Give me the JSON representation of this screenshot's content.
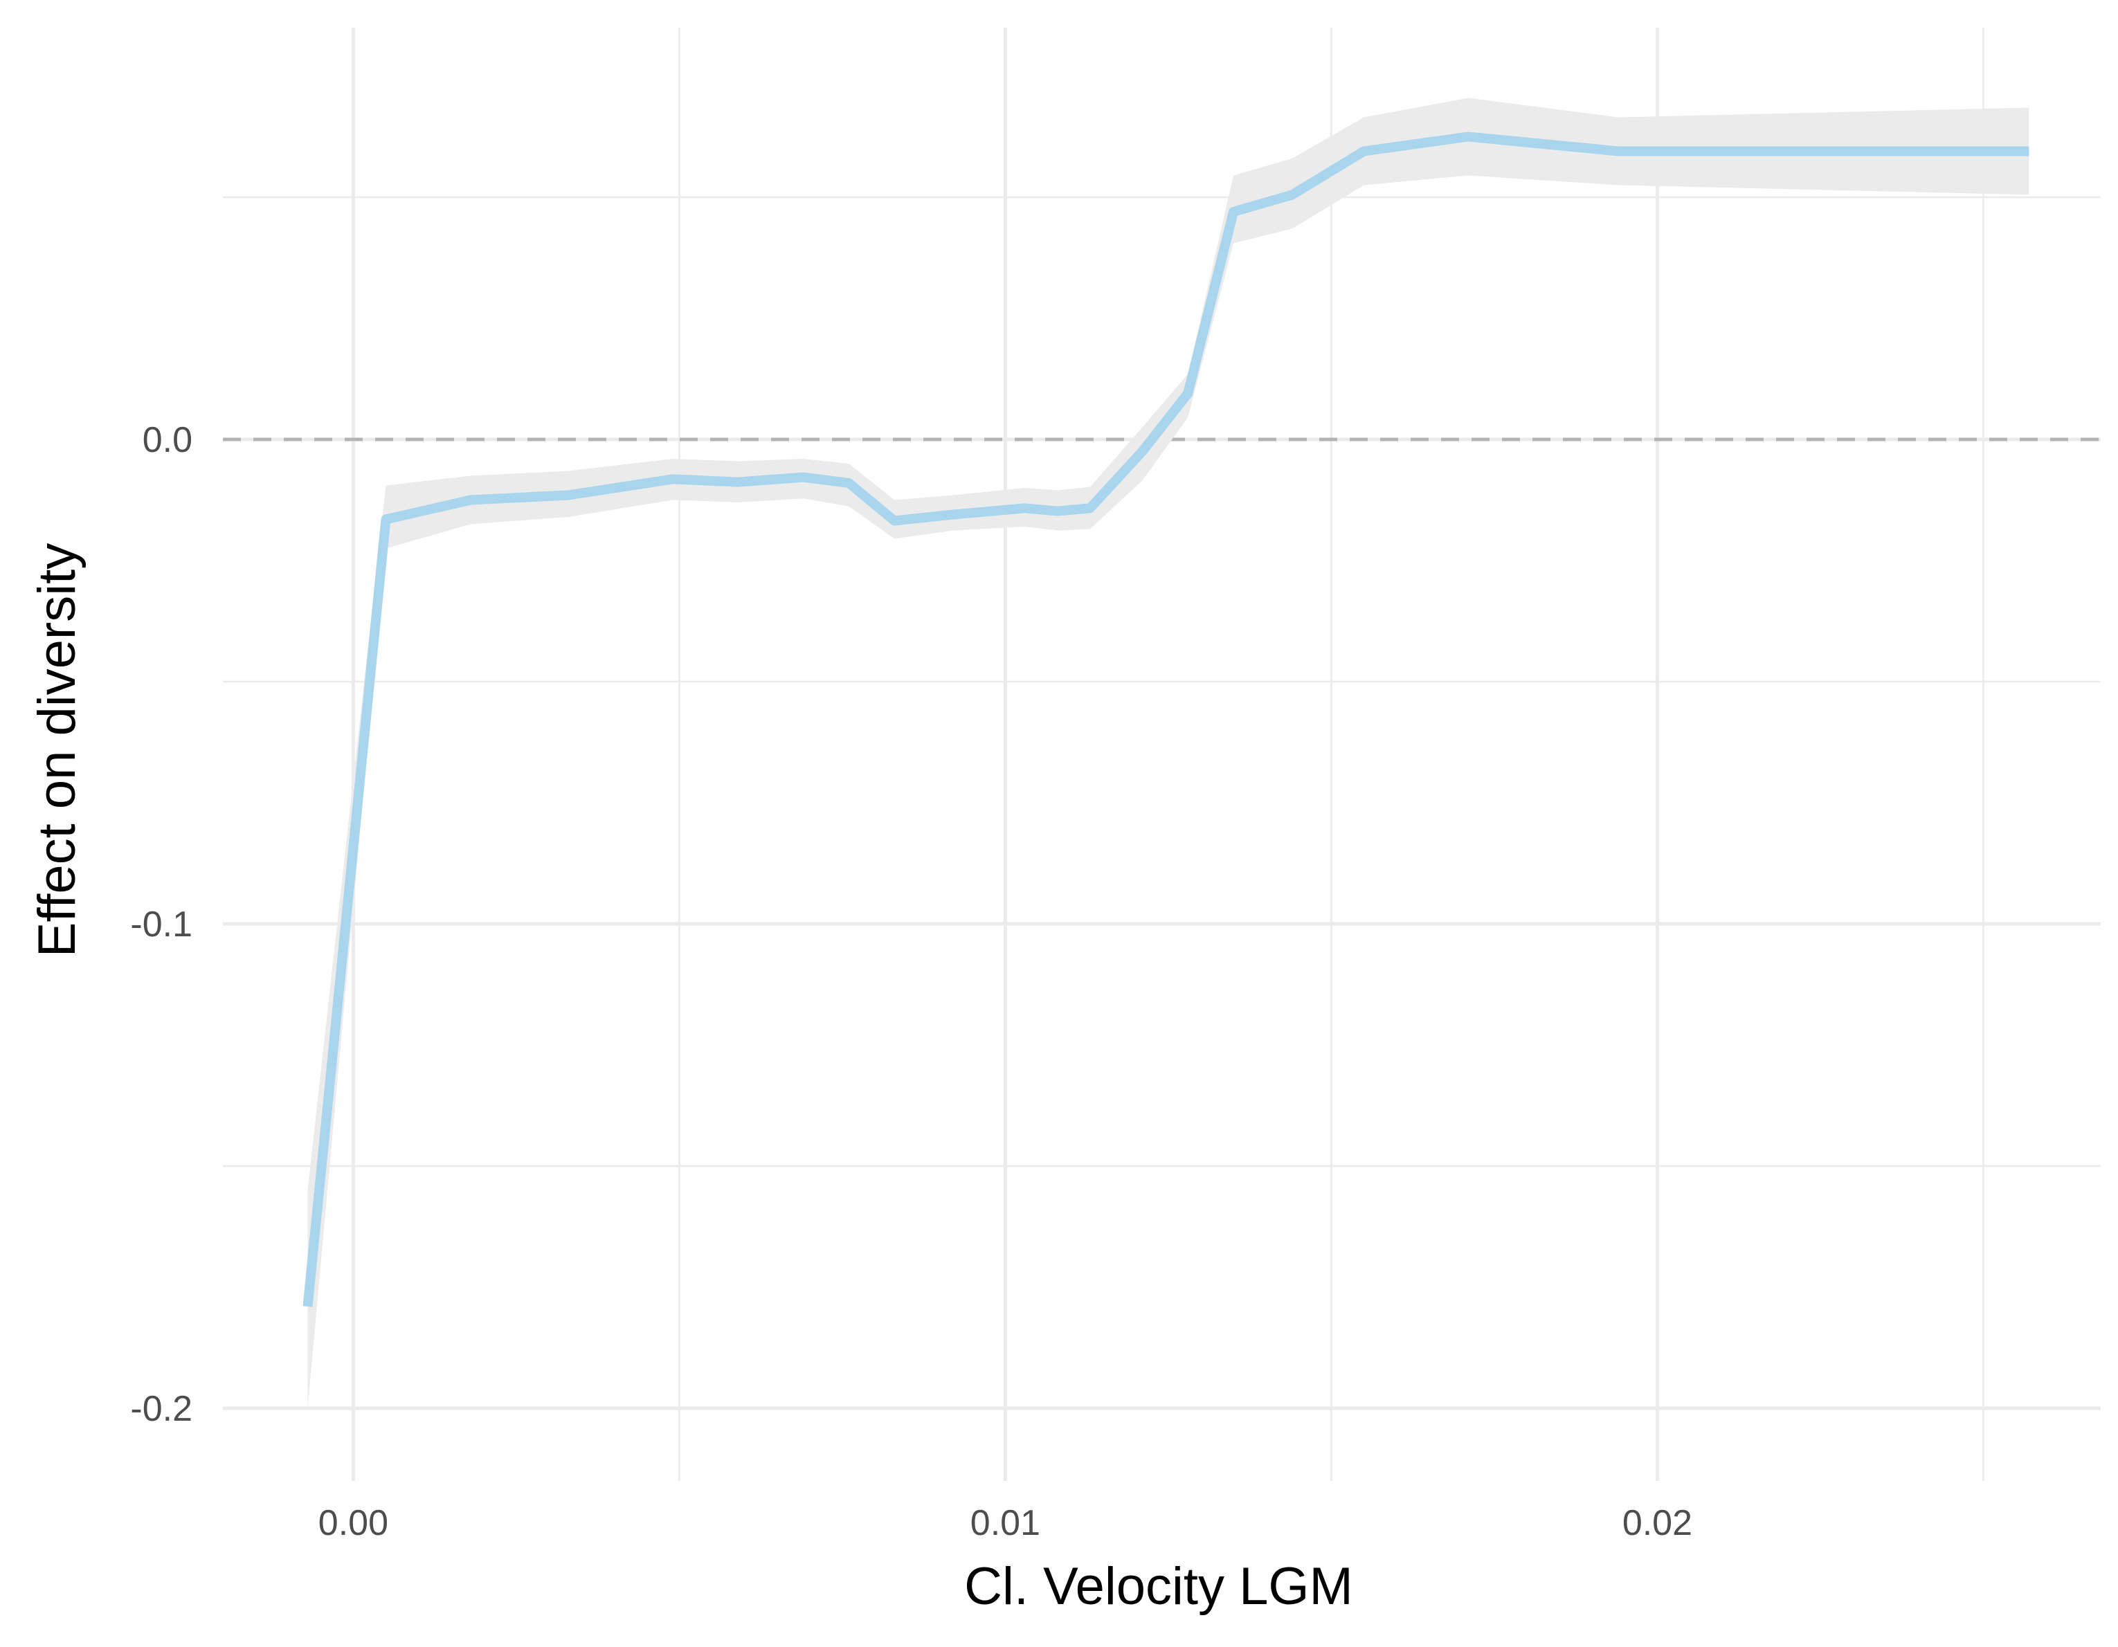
{
  "chart_data": {
    "type": "line",
    "xlabel": "Cl. Velocity LGM",
    "ylabel": "Effect on diversity",
    "xlim": [
      -0.002,
      0.0268
    ],
    "ylim": [
      -0.215,
      0.085
    ],
    "x_ticks": [
      0.0,
      0.01,
      0.02
    ],
    "x_tick_labels": [
      "0.00",
      "0.01",
      "0.02"
    ],
    "y_ticks": [
      -0.2,
      -0.1,
      0.0
    ],
    "y_tick_labels": [
      "-0.2",
      "-0.1",
      "0.0"
    ],
    "reference_line": {
      "y": 0.0,
      "style": "dashed",
      "color": "#b3b3b3"
    },
    "grid": true,
    "series": [
      {
        "x": [
          -0.0007,
          0.0005,
          0.0018,
          0.0033,
          0.0049,
          0.0059,
          0.0069,
          0.0076,
          0.0083,
          0.0092,
          0.0103,
          0.0108,
          0.0113,
          0.0121,
          0.0128,
          0.0135,
          0.0144,
          0.0155,
          0.0171,
          0.0194,
          0.0257
        ],
        "y": [
          -0.179,
          -0.0165,
          -0.0125,
          -0.0115,
          -0.0082,
          -0.0088,
          -0.0078,
          -0.009,
          -0.0168,
          -0.0155,
          -0.0142,
          -0.0148,
          -0.0142,
          -0.0025,
          0.0095,
          0.047,
          0.0505,
          0.0595,
          0.0625,
          0.0595,
          0.0595
        ],
        "lower": [
          -0.2,
          -0.0225,
          -0.0175,
          -0.016,
          -0.0125,
          -0.013,
          -0.0122,
          -0.0138,
          -0.0205,
          -0.0188,
          -0.018,
          -0.0188,
          -0.0185,
          -0.0085,
          0.0045,
          0.0405,
          0.0435,
          0.0525,
          0.0545,
          0.0525,
          0.0505
        ],
        "upper": [
          -0.155,
          -0.0095,
          -0.0075,
          -0.0065,
          -0.004,
          -0.0045,
          -0.004,
          -0.005,
          -0.0125,
          -0.0115,
          -0.01,
          -0.0105,
          -0.0098,
          0.0025,
          0.0135,
          0.0545,
          0.058,
          0.0665,
          0.0705,
          0.0665,
          0.0685
        ],
        "color": "#a8d4ed",
        "ribbon_color": "#ebebeb"
      }
    ]
  }
}
